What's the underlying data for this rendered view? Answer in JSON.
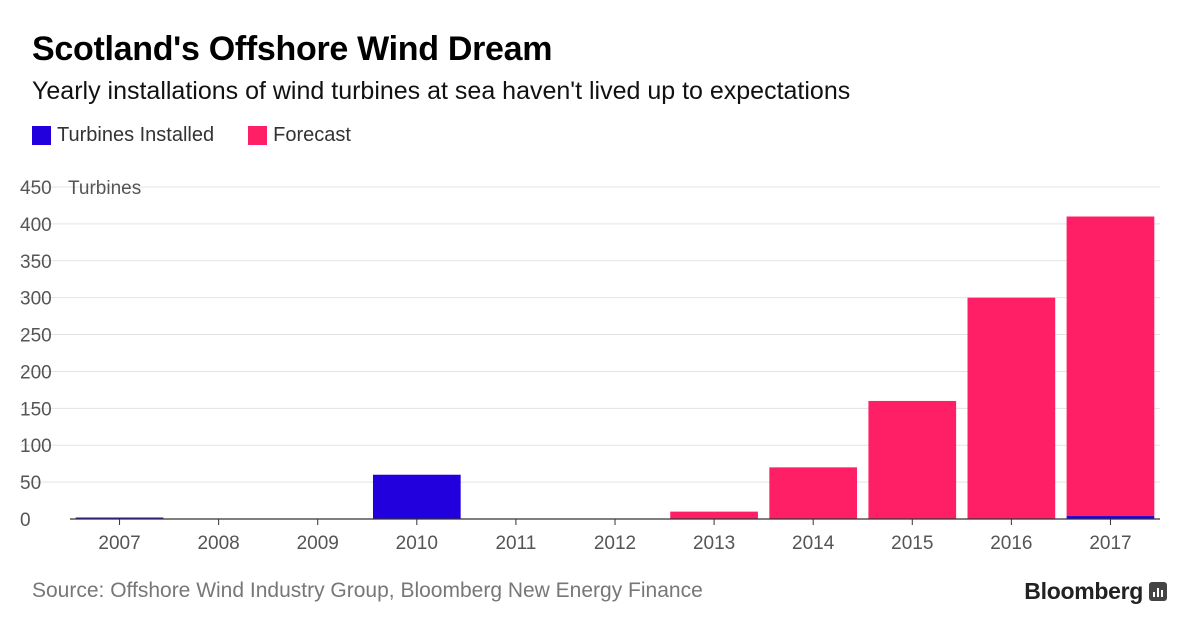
{
  "header": {
    "title": "Scotland's Offshore Wind Dream",
    "subtitle": "Yearly installations of wind turbines at sea haven't lived up to expectations"
  },
  "footer": {
    "source": "Source: Offshore Wind Industry Group, Bloomberg New Energy Finance",
    "brand": "Bloomberg"
  },
  "chart_data": {
    "type": "bar",
    "stacked": true,
    "categories": [
      "2007",
      "2008",
      "2009",
      "2010",
      "2011",
      "2012",
      "2013",
      "2014",
      "2015",
      "2016",
      "2017"
    ],
    "series": [
      {
        "name": "Turbines Installed",
        "color": "#2200dd",
        "values": [
          2,
          0,
          0,
          60,
          0,
          0,
          0,
          0,
          0,
          0,
          4
        ]
      },
      {
        "name": "Forecast",
        "color": "#ff1f66",
        "values": [
          0,
          0,
          0,
          0,
          0,
          0,
          10,
          70,
          160,
          300,
          406
        ]
      }
    ],
    "ylabel": "Turbines",
    "ylim": [
      0,
      450
    ],
    "yticks": [
      0,
      50,
      100,
      150,
      200,
      250,
      300,
      350,
      400,
      450
    ],
    "grid": true,
    "legend_position": "top-left"
  }
}
